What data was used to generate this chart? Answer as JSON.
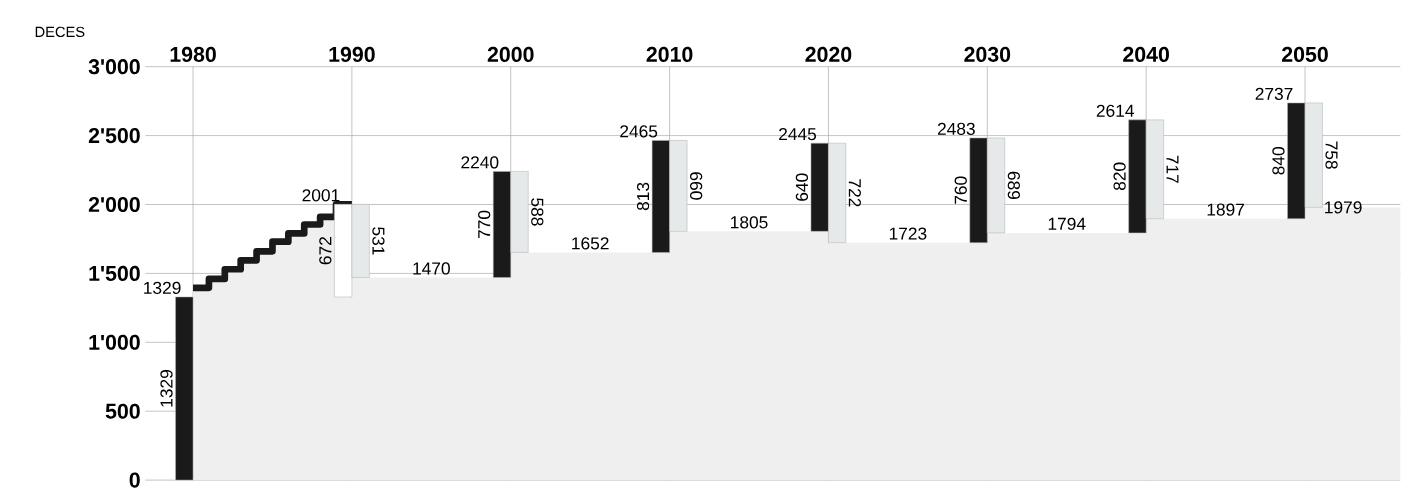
{
  "chart_data": {
    "type": "bar",
    "ylabel": "DECES",
    "xlim": [
      1977,
      2056
    ],
    "ylim": [
      0,
      3000
    ],
    "xticks": [
      1980,
      1990,
      2000,
      2010,
      2020,
      2030,
      2040,
      2050
    ],
    "yticks": [
      0,
      500,
      {
        "value": 1000,
        "label": "1'000"
      },
      {
        "value": 1500,
        "label": "1'500"
      },
      {
        "value": 2000,
        "label": "2'000"
      },
      {
        "value": 2500,
        "label": "2'500"
      },
      {
        "value": 3000,
        "label": "3'000"
      }
    ],
    "grid": true,
    "series": [
      {
        "type": "area",
        "color": "#efefef",
        "x": [
          1980,
          1981,
          1982,
          1983,
          1984,
          1985,
          1986,
          1987,
          1988,
          1989,
          1990,
          2000,
          2010,
          2020,
          2030,
          2040,
          2050,
          2056
        ],
        "values": [
          1395,
          1460,
          1530,
          1595,
          1660,
          1730,
          1790,
          1855,
          1910,
          2001,
          1470,
          1652,
          1805,
          1723,
          1794,
          1897,
          1979,
          1979
        ]
      },
      {
        "type": "step",
        "color": "#1a1a1a",
        "x": [
          1980,
          1981,
          1982,
          1983,
          1984,
          1985,
          1986,
          1987,
          1988,
          1989,
          1990
        ],
        "values": [
          1395,
          1460,
          1530,
          1595,
          1660,
          1730,
          1790,
          1855,
          1910,
          2001,
          2001
        ]
      },
      {
        "x": [
          1980,
          1990,
          2000,
          2010,
          2020,
          2030,
          2040,
          2050
        ],
        "base": [
          0,
          1329,
          1470,
          1652,
          1805,
          1723,
          1794,
          1897
        ],
        "values": [
          1329,
          672,
          770,
          813,
          640,
          760,
          820,
          840
        ],
        "colors": [
          "#1a1a1a",
          "#ffffff",
          "#1a1a1a",
          "#1a1a1a",
          "#1a1a1a",
          "#1a1a1a",
          "#1a1a1a",
          "#1a1a1a"
        ],
        "value_labels": [
          "1329",
          "672",
          "770",
          "813",
          "640",
          "760",
          "820",
          "840"
        ]
      },
      {
        "color": "#e6e9ea",
        "x": [
          1990,
          2000,
          2010,
          2020,
          2030,
          2040,
          2050
        ],
        "base": [
          2001,
          2240,
          2465,
          2445,
          2483,
          2614,
          2737
        ],
        "values": [
          -531,
          -588,
          -660,
          -722,
          -689,
          -717,
          -758
        ],
        "value_labels": [
          "531",
          "588",
          "660",
          "722",
          "689",
          "717",
          "758"
        ]
      }
    ],
    "annotations": [
      {
        "text": "1329",
        "x": 1980,
        "y": 1329
      },
      {
        "text": "2001",
        "x": 1990,
        "y": 2001
      },
      {
        "text": "2240",
        "x": 2000,
        "y": 2240
      },
      {
        "text": "2465",
        "x": 2010,
        "y": 2465
      },
      {
        "text": "2445",
        "x": 2020,
        "y": 2445
      },
      {
        "text": "2483",
        "x": 2030,
        "y": 2483
      },
      {
        "text": "2614",
        "x": 2040,
        "y": 2614
      },
      {
        "text": "2737",
        "x": 2050,
        "y": 2737
      },
      {
        "text": "1470",
        "x": 1995,
        "y": 1470
      },
      {
        "text": "1652",
        "x": 2005,
        "y": 1652
      },
      {
        "text": "1805",
        "x": 2015,
        "y": 1805
      },
      {
        "text": "1723",
        "x": 2025,
        "y": 1723
      },
      {
        "text": "1794",
        "x": 2035,
        "y": 1794
      },
      {
        "text": "1897",
        "x": 2045,
        "y": 1897
      },
      {
        "text": "1979",
        "x": 2052.5,
        "y": 1979
      }
    ]
  }
}
